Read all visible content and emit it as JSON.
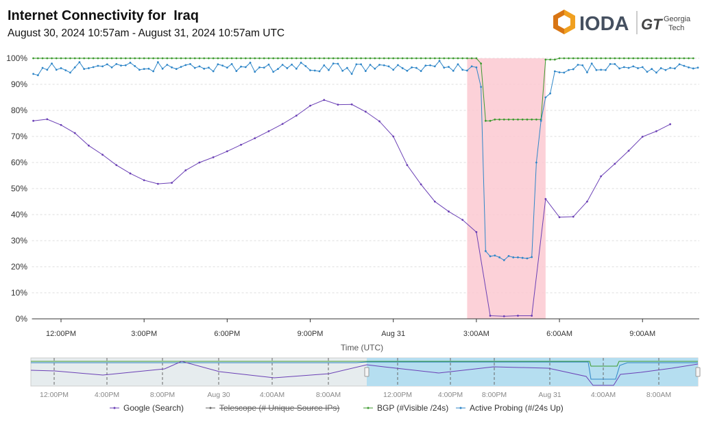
{
  "header": {
    "title": "Internet Connectivity for  Iraq",
    "subtitle": "August 30, 2024 10:57am - August 31, 2024 10:57am UTC",
    "logo_text": "IODA",
    "partner_logo": "Georgia Tech"
  },
  "colors": {
    "google": "#6a3fb5",
    "telescope": "#666666",
    "bgp": "#3c9a2e",
    "active_probing": "#2f86c8",
    "outage_band": "#fbc9d1",
    "navigator_selection": "#b5def0"
  },
  "chart_data": {
    "type": "line",
    "title": "",
    "xlabel": "Time (UTC)",
    "ylabel": "",
    "ylim": [
      0,
      100
    ],
    "y_ticks": [
      "0%",
      "10%",
      "20%",
      "30%",
      "40%",
      "50%",
      "60%",
      "70%",
      "80%",
      "90%",
      "100%"
    ],
    "x_range": [
      "Aug 30 10:57",
      "Aug 31 10:57"
    ],
    "x_ticks": [
      {
        "label": "12:00PM",
        "t": "Aug 30 12:00"
      },
      {
        "label": "3:00PM",
        "t": "Aug 30 15:00"
      },
      {
        "label": "6:00PM",
        "t": "Aug 30 18:00"
      },
      {
        "label": "9:00PM",
        "t": "Aug 30 21:00"
      },
      {
        "label": "Aug 31",
        "t": "Aug 31 00:00"
      },
      {
        "label": "3:00AM",
        "t": "Aug 31 03:00"
      },
      {
        "label": "6:00AM",
        "t": "Aug 31 06:00"
      },
      {
        "label": "9:00AM",
        "t": "Aug 31 09:00"
      }
    ],
    "grid": true,
    "outage_band": {
      "from": "Aug 31 02:40",
      "to": "Aug 31 05:30"
    },
    "series": [
      {
        "name": "Google (Search)",
        "key": "google",
        "interval_minutes": 30,
        "from": "Aug 30 11:00",
        "values": [
          76,
          76.6,
          74.4,
          71.3,
          66.5,
          63,
          59,
          55.8,
          53.2,
          51.8,
          52.2,
          57,
          60,
          62,
          64.3,
          66.8,
          69.3,
          72,
          74.8,
          78,
          81.8,
          84,
          82.2,
          82.3,
          79.5,
          75.8,
          70,
          59,
          51.6,
          45,
          41.2,
          38,
          33.3,
          1.2,
          1,
          1.2,
          1.2,
          46,
          39,
          39.2,
          45,
          54.7,
          59.5,
          64.5,
          69.9,
          72,
          74.7
        ]
      },
      {
        "name": "Telescope (# Unique Source IPs)",
        "key": "telescope",
        "disabled": true,
        "values": []
      },
      {
        "name": "BGP (#Visible /24s)",
        "key": "bgp",
        "interval_minutes": 10,
        "from": "Aug 30 11:00",
        "values": [
          100,
          100,
          100,
          100,
          100,
          100,
          100,
          100,
          100,
          100,
          100,
          100,
          100,
          100,
          100,
          100,
          100,
          100,
          100,
          100,
          100,
          100,
          100,
          100,
          100,
          100,
          100,
          100,
          100,
          100,
          100,
          100,
          100,
          100,
          100,
          100,
          100,
          100,
          100,
          100,
          100,
          100,
          100,
          100,
          100,
          100,
          100,
          100,
          100,
          100,
          100,
          100,
          100,
          100,
          100,
          100,
          100,
          100,
          100,
          100,
          100,
          100,
          100,
          100,
          100,
          100,
          100,
          100,
          100,
          100,
          100,
          100,
          100,
          100,
          100,
          100,
          100,
          100,
          100,
          100,
          100,
          100,
          100,
          100,
          100,
          100,
          100,
          100,
          100,
          100,
          100,
          100,
          100,
          100,
          100,
          100,
          100,
          98,
          76,
          76,
          76.5,
          76.5,
          76.5,
          76.5,
          76.5,
          76.5,
          76.5,
          76.5,
          76.5,
          76.5,
          76.5,
          99.5,
          99.5,
          99.5,
          100,
          100,
          100,
          100,
          100,
          100,
          100,
          100,
          100,
          100,
          100,
          100,
          100,
          100,
          100,
          100,
          100,
          100,
          100,
          100,
          100,
          100,
          100,
          100,
          100,
          100,
          100,
          100,
          100,
          100
        ]
      },
      {
        "name": "Active Probing (#/24s Up)",
        "key": "active_probing",
        "interval_minutes": 10,
        "from": "Aug 30 11:00",
        "values": [
          94,
          93.5,
          96.3,
          95.6,
          98,
          95.6,
          96.2,
          95.4,
          94.5,
          96.5,
          98.5,
          95.9,
          96.2,
          96.6,
          97.1,
          96.9,
          97.7,
          96.5,
          97.8,
          97.2,
          97.3,
          98.3,
          97,
          95.6,
          95.9,
          96,
          95,
          98.5,
          96,
          97.5,
          96.5,
          95.9,
          96.7,
          97.4,
          97.8,
          96.3,
          96.9,
          96,
          96.4,
          95,
          97.7,
          97.2,
          96.4,
          97.8,
          95.1,
          96.8,
          96.6,
          98.3,
          94.8,
          96.5,
          96.4,
          97.6,
          94.8,
          95.9,
          97.5,
          96.2,
          97.6,
          96,
          98.3,
          97,
          95.4,
          95.3,
          95,
          97.3,
          95.5,
          98,
          97.9,
          95.2,
          96.3,
          94,
          97.7,
          97.7,
          95.1,
          97.5,
          96,
          97.5,
          97.3,
          96.9,
          95.6,
          97.4,
          96.2,
          95.2,
          96.5,
          96.3,
          95.1,
          97.2,
          97.3,
          96.9,
          99,
          96.4,
          96.7,
          95.2,
          97.7,
          95.6,
          95.3,
          96.9,
          96.5,
          89,
          26,
          24,
          24.3,
          23.6,
          22.5,
          24.1,
          23.6,
          23.6,
          23.4,
          23.2,
          23.7,
          60,
          76,
          85,
          86.5,
          95,
          94.6,
          94.5,
          95.5,
          95.8,
          97.5,
          97.3,
          94.6,
          98,
          95.5,
          95.6,
          95.5,
          97.8,
          97.8,
          96.1,
          96.6,
          96.3,
          96.9,
          96.2,
          96.6,
          94.8,
          95.9,
          94.5,
          96.2,
          95.5,
          96.3,
          96.1,
          97.7,
          97.1,
          96.5,
          96.1,
          96.4
        ]
      }
    ],
    "legend_placement": "bottom",
    "navigator": {
      "x_ticks": [
        "12:00PM",
        "4:00PM",
        "8:00PM",
        "Aug 30",
        "4:00AM",
        "8:00AM",
        "12:00PM",
        "4:00PM",
        "8:00PM",
        "Aug 31",
        "4:00AM",
        "8:00AM"
      ]
    }
  }
}
